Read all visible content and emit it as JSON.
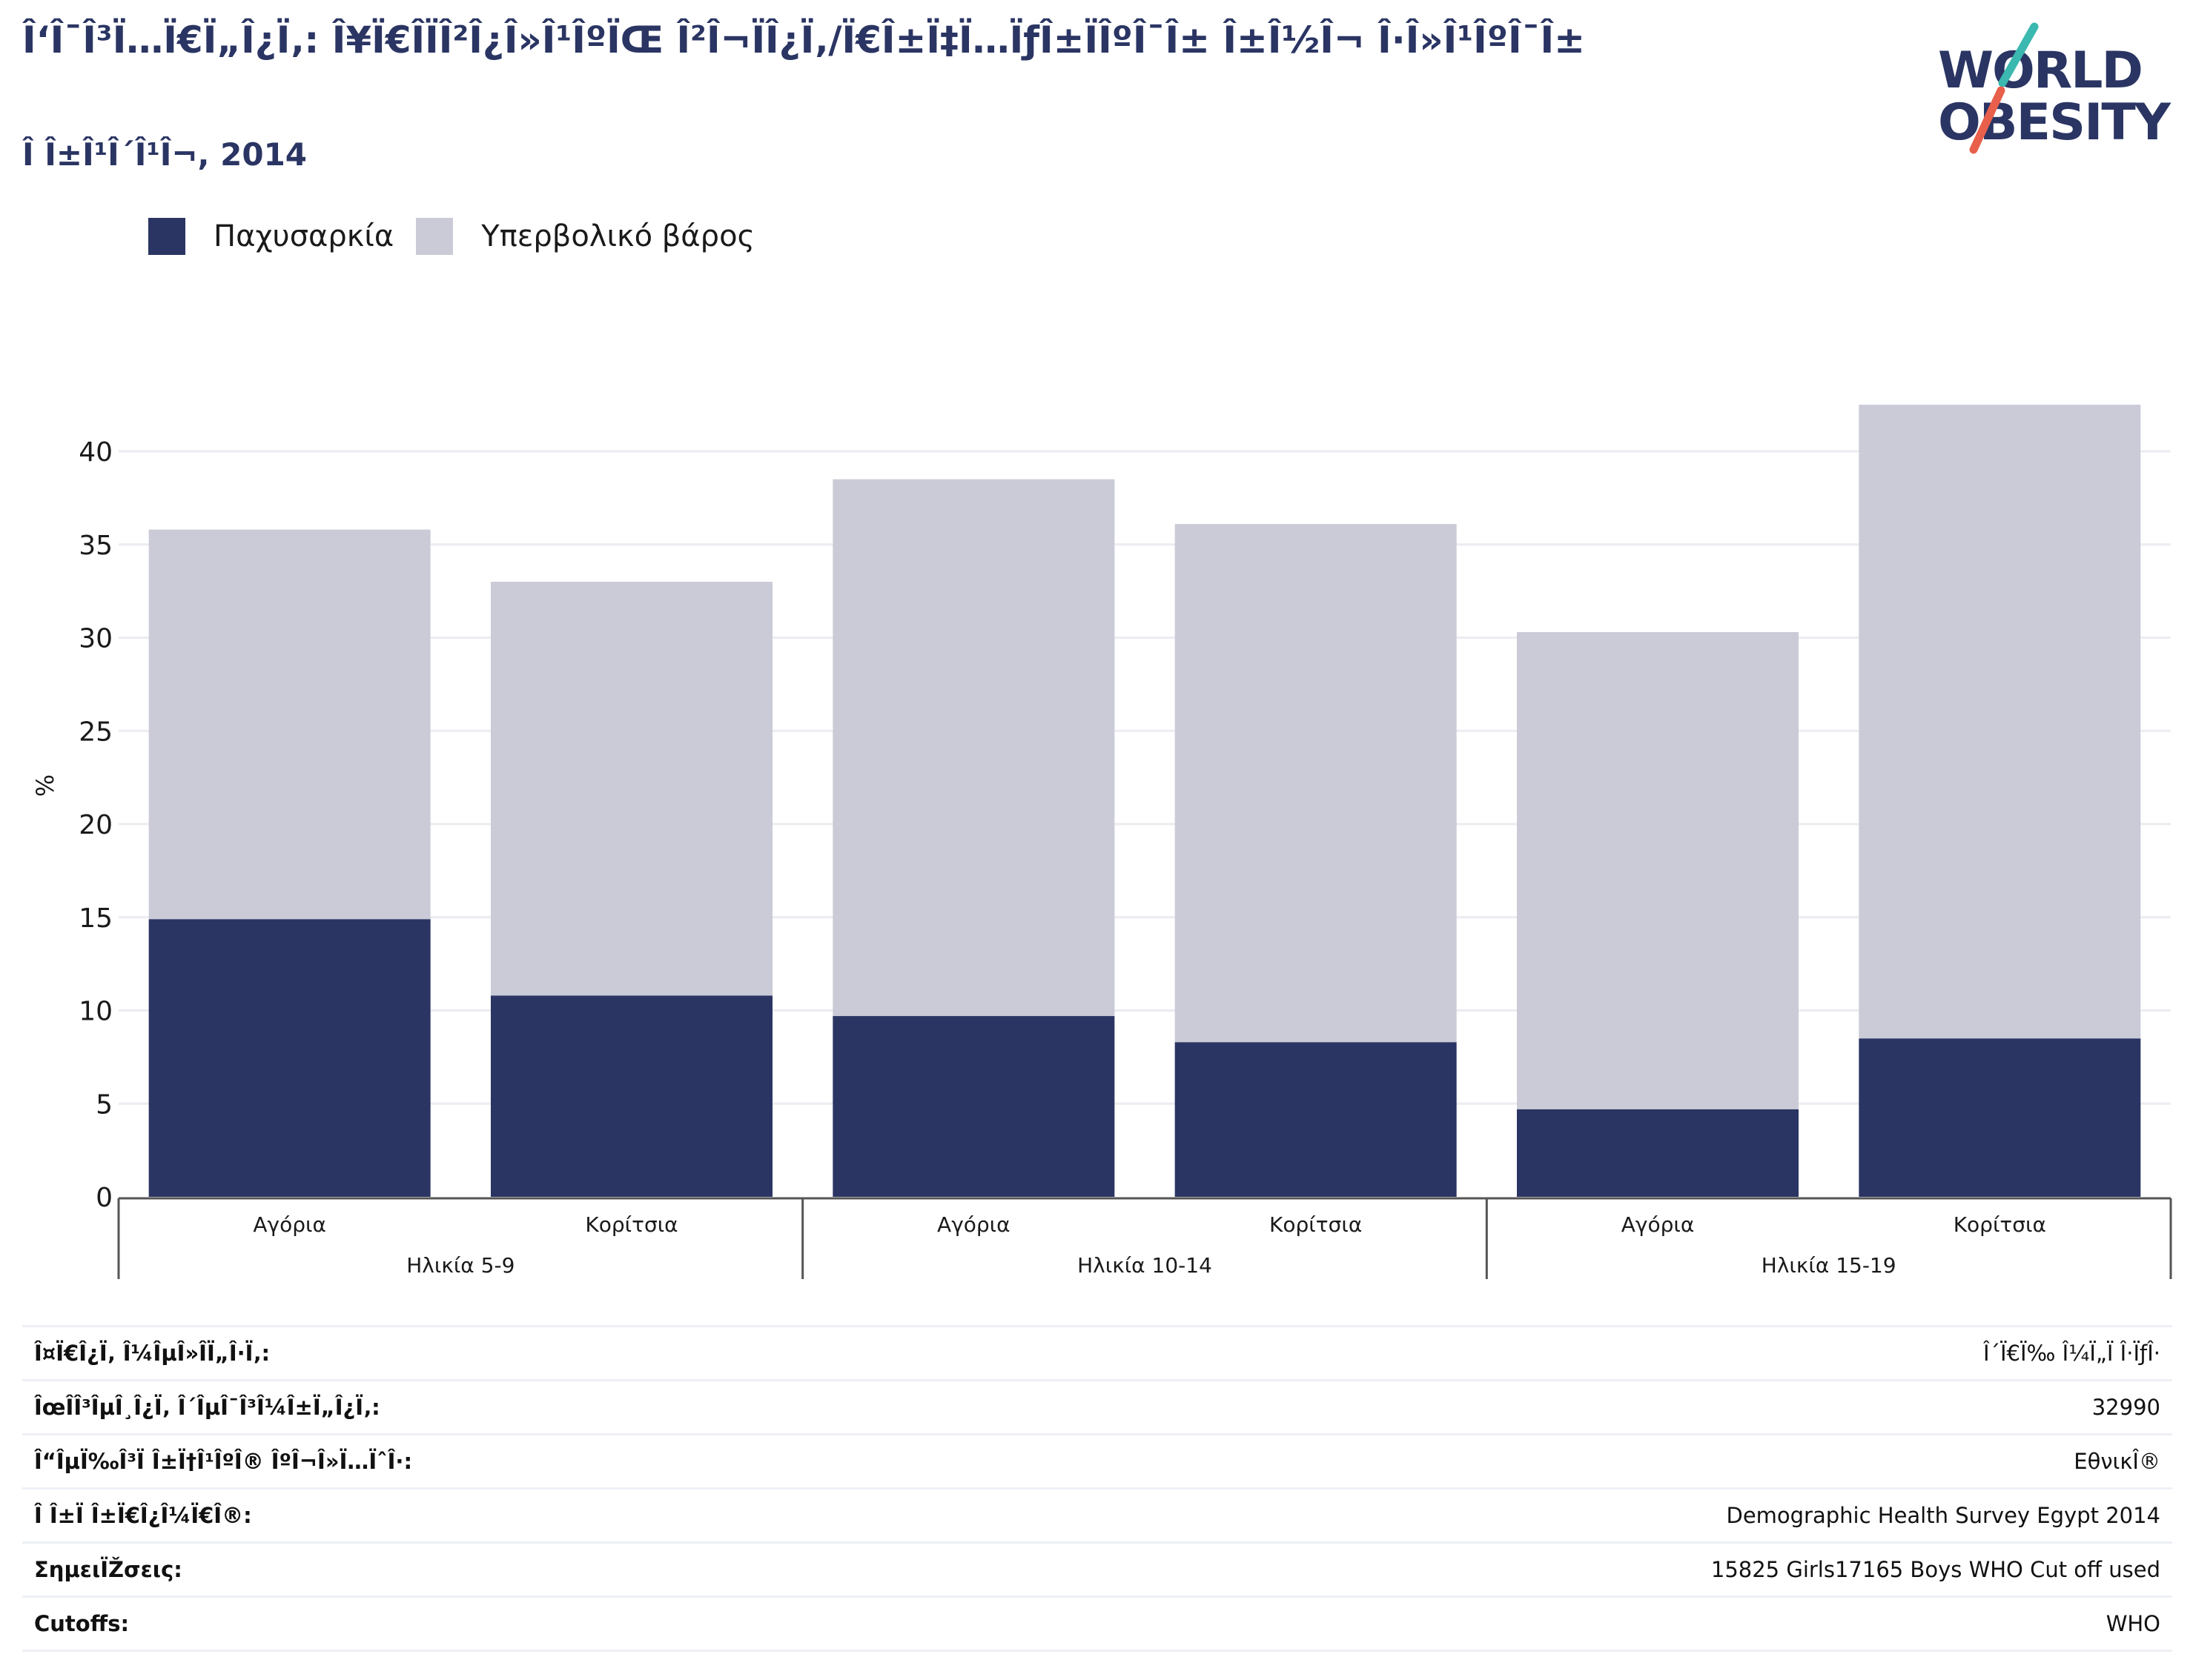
{
  "header": {
    "title": "Î‘Î¯Î³Ï…Ï€Ï„Î¿Ï‚: Î¥Ï€Î­ÏÎ²Î¿Î»Î¹ÎºÏŒ Î²Î¬ÏÎ¿Ï‚/Ï€Î±Ï‡Ï…ÏƒÎ±ÏÎºÎ¯Î± Î±Î½Î¬ Î·Î»Î¹ÎºÎ¯Î±",
    "subtitle": "Î Î±Î¹Î´Î¹Î¬, 2014",
    "logo_line1": "WORLD",
    "logo_line2": "OBESITY"
  },
  "colors": {
    "obesity": "#2a3563",
    "overweight": "#cacbd7",
    "title": "#2a3563",
    "logo_teal": "#3bb8b0",
    "logo_coral": "#e8604c"
  },
  "chart_data": {
    "type": "bar",
    "stacked": true,
    "ylabel": "%",
    "ylim": [
      0,
      43
    ],
    "yticks": [
      0,
      5,
      10,
      15,
      20,
      25,
      30,
      35,
      40
    ],
    "grid": true,
    "legend_position": "top-left",
    "groups": [
      {
        "label": "Ηλικία 5-9",
        "categories": [
          "Αγόρια",
          "Κορίτσια"
        ]
      },
      {
        "label": "Ηλικία 10-14",
        "categories": [
          "Αγόρια",
          "Κορίτσια"
        ]
      },
      {
        "label": "Ηλικία 15-19",
        "categories": [
          "Αγόρια",
          "Κορίτσια"
        ]
      }
    ],
    "series": [
      {
        "name": "Παχυσαρκία",
        "values": [
          14.9,
          10.8,
          9.7,
          8.3,
          4.7,
          8.5
        ]
      },
      {
        "name": "Υπερβολικό βάρος",
        "values": [
          20.9,
          22.2,
          28.8,
          27.8,
          25.6,
          34.0
        ]
      }
    ]
  },
  "meta": [
    {
      "label": "Î¤Ï€Î¿Ï‚ Î¼ÎµÎ»Î­Ï„Î·Ï‚:",
      "value": "Î´Ï€Ï‰ Î¼Ï„Ï Î·ÏƒÎ·"
    },
    {
      "label": "ÎœÎ­Î³ÎµÎ¸Î¿Ï‚ Î´ÎµÎ¯Î³Î¼Î±Ï„Î¿Ï‚:",
      "value": "32990"
    },
    {
      "label": "Î“ÎµÏ‰Î³Ï Î±Ï†Î¹ÎºÎ® ÎºÎ¬Î»Ï…ÏˆÎ·:",
      "value": "ΕθνικÎ®"
    },
    {
      "label": "Î Î±Ï Î±Ï€Î¿Î¼Ï€Î®:",
      "value": "Demographic Health Survey Egypt 2014"
    },
    {
      "label": "ΣημειÏŽσεις:",
      "value": "15825 Girls17165 Boys WHO Cut off used"
    },
    {
      "label": "Cutoffs:",
      "value": "WHO"
    }
  ]
}
